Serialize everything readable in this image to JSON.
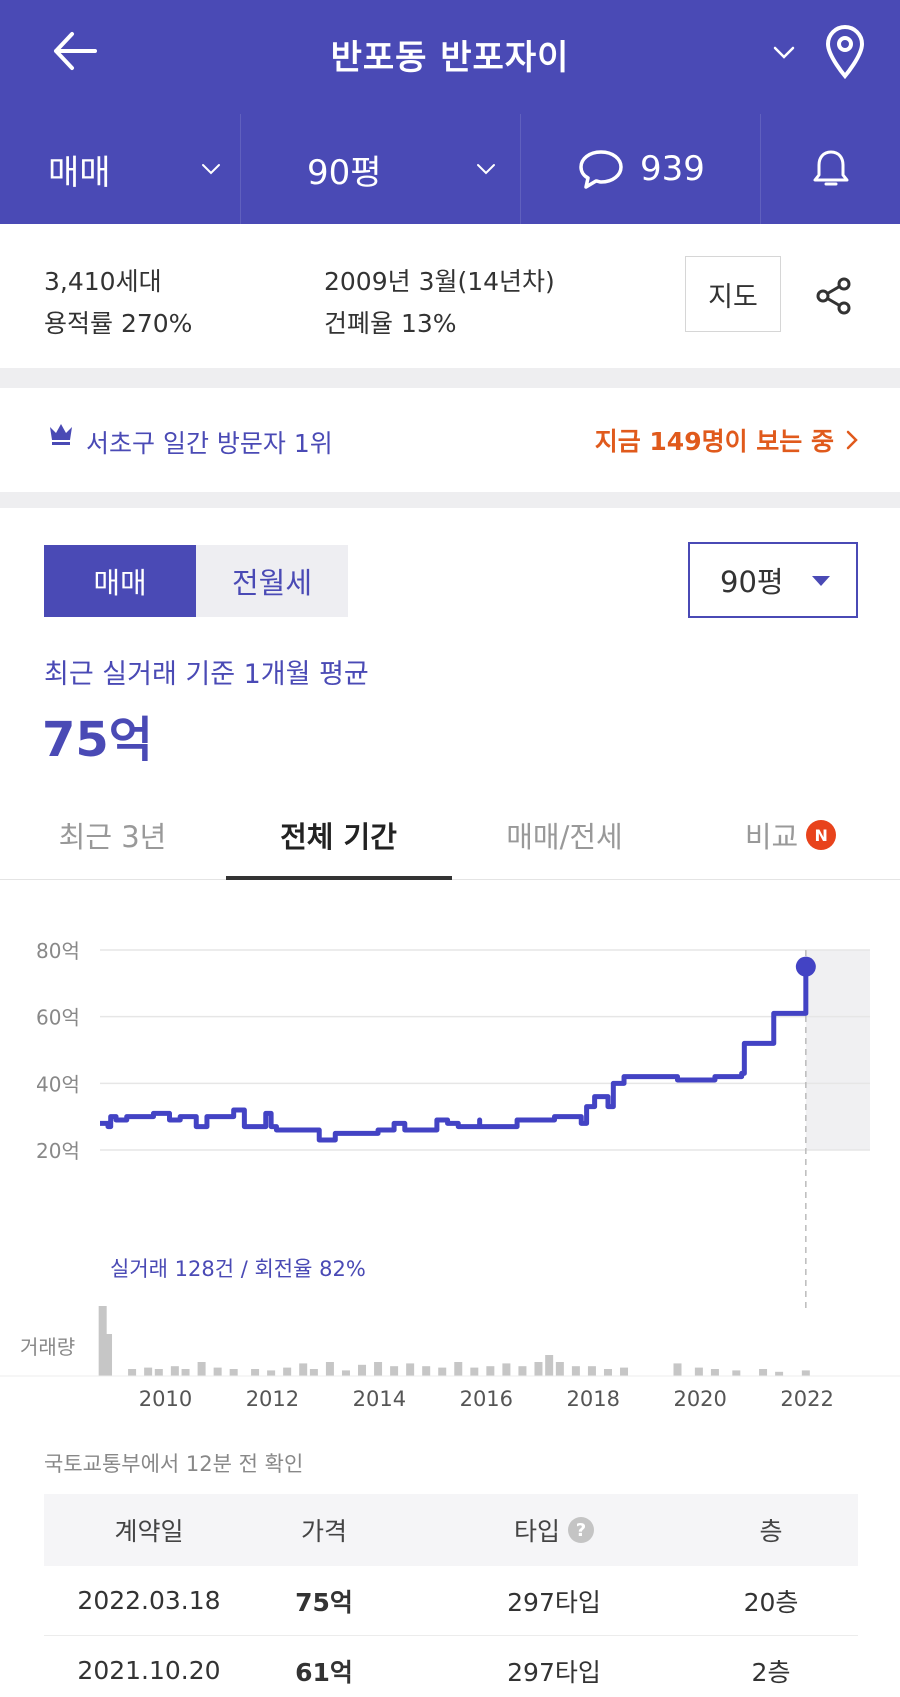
{
  "header": {
    "title": "반포동 반포자이",
    "trade_type": "매매",
    "size": "90평",
    "comment_count": "939"
  },
  "info": {
    "households": "3,410세대",
    "floor_area_ratio": "용적률 270%",
    "built": "2009년 3월(14년차)",
    "building_coverage": "건폐율 13%",
    "map_label": "지도"
  },
  "rank": {
    "text": "서초구 일간 방문자 1위",
    "viewing": "지금 149명이 보는 중"
  },
  "filters": {
    "seg_sale": "매매",
    "seg_rent": "전월세",
    "size": "90평"
  },
  "average": {
    "label": "최근 실거래 기준 1개월 평균",
    "value": "75억"
  },
  "tabs": {
    "recent": "최근 3년",
    "all": "전체 기간",
    "sale_jeonse": "매매/전세",
    "compare": "비교",
    "new_badge": "N"
  },
  "chart_data": {
    "type": "line",
    "y_ticks": [
      "80억",
      "60억",
      "40억",
      "20억"
    ],
    "ylim": [
      20,
      80
    ],
    "x_ticks": [
      "2010",
      "2012",
      "2014",
      "2016",
      "2018",
      "2020",
      "2022"
    ],
    "xlim": [
      2009.0,
      2023.4
    ],
    "summary": "실거래 128건 / 회전율 82%",
    "volume_label": "거래량",
    "series": [
      {
        "x": [
          2009.0,
          2009.15,
          2009.2,
          2009.3,
          2009.5,
          2010.0,
          2010.3,
          2010.5,
          2010.8,
          2011.0,
          2011.5,
          2011.7,
          2011.8,
          2012.1,
          2012.2,
          2012.3,
          2013.0,
          2013.1,
          2013.4,
          2013.8,
          2014.2,
          2014.5,
          2014.7,
          2015.0,
          2015.3,
          2015.5,
          2015.7,
          2016.1,
          2016.1,
          2016.5,
          2016.8,
          2017.0,
          2017.5,
          2018.0,
          2018.1,
          2018.25,
          2018.5,
          2018.6,
          2018.8,
          2019.0,
          2019.5,
          2019.8,
          2020.0,
          2020.3,
          2020.5,
          2020.8,
          2021.0,
          2021.05,
          2021.5,
          2021.6,
          2021.9,
          2022.2
        ],
        "values": [
          28,
          27,
          30,
          29,
          30,
          31,
          29,
          30,
          27,
          30,
          32,
          27,
          27,
          31,
          27,
          26,
          26,
          23,
          25,
          25,
          26,
          28,
          26,
          26,
          29,
          28,
          27,
          29,
          27,
          27,
          29,
          29,
          30,
          28,
          33,
          36,
          33,
          40,
          42,
          42,
          42,
          41,
          41,
          41,
          42,
          42,
          43,
          52,
          52,
          61,
          61,
          75
        ]
      }
    ],
    "volume": [
      {
        "x": 2009.05,
        "v": 1.0
      },
      {
        "x": 2009.15,
        "v": 0.6
      },
      {
        "x": 2009.6,
        "v": 0.1
      },
      {
        "x": 2009.9,
        "v": 0.12
      },
      {
        "x": 2010.1,
        "v": 0.1
      },
      {
        "x": 2010.4,
        "v": 0.14
      },
      {
        "x": 2010.6,
        "v": 0.1
      },
      {
        "x": 2010.9,
        "v": 0.2
      },
      {
        "x": 2011.2,
        "v": 0.12
      },
      {
        "x": 2011.5,
        "v": 0.1
      },
      {
        "x": 2011.9,
        "v": 0.1
      },
      {
        "x": 2012.2,
        "v": 0.08
      },
      {
        "x": 2012.5,
        "v": 0.12
      },
      {
        "x": 2012.8,
        "v": 0.18
      },
      {
        "x": 2013.0,
        "v": 0.1
      },
      {
        "x": 2013.3,
        "v": 0.2
      },
      {
        "x": 2013.6,
        "v": 0.08
      },
      {
        "x": 2013.9,
        "v": 0.16
      },
      {
        "x": 2014.2,
        "v": 0.2
      },
      {
        "x": 2014.5,
        "v": 0.14
      },
      {
        "x": 2014.8,
        "v": 0.18
      },
      {
        "x": 2015.1,
        "v": 0.14
      },
      {
        "x": 2015.4,
        "v": 0.12
      },
      {
        "x": 2015.7,
        "v": 0.2
      },
      {
        "x": 2016.0,
        "v": 0.12
      },
      {
        "x": 2016.3,
        "v": 0.14
      },
      {
        "x": 2016.6,
        "v": 0.18
      },
      {
        "x": 2016.9,
        "v": 0.14
      },
      {
        "x": 2017.2,
        "v": 0.2
      },
      {
        "x": 2017.4,
        "v": 0.3
      },
      {
        "x": 2017.6,
        "v": 0.2
      },
      {
        "x": 2017.9,
        "v": 0.14
      },
      {
        "x": 2018.2,
        "v": 0.14
      },
      {
        "x": 2018.5,
        "v": 0.1
      },
      {
        "x": 2018.8,
        "v": 0.12
      },
      {
        "x": 2019.8,
        "v": 0.18
      },
      {
        "x": 2020.2,
        "v": 0.12
      },
      {
        "x": 2020.5,
        "v": 0.1
      },
      {
        "x": 2020.9,
        "v": 0.08
      },
      {
        "x": 2021.4,
        "v": 0.1
      },
      {
        "x": 2021.7,
        "v": 0.06
      },
      {
        "x": 2022.2,
        "v": 0.08
      }
    ]
  },
  "trades": {
    "source": "국토교통부에서 12분 전 확인",
    "columns": [
      "계약일",
      "가격",
      "타입",
      "층"
    ],
    "rows": [
      {
        "date": "2022.03.18",
        "price": "75억",
        "type": "297타입",
        "floor": "20층"
      },
      {
        "date": "2021.10.20",
        "price": "61억",
        "type": "297타입",
        "floor": "2층"
      }
    ]
  },
  "colors": {
    "brand": "#4a4ab5",
    "accent": "#e05a1c",
    "line": "#4343c4"
  }
}
